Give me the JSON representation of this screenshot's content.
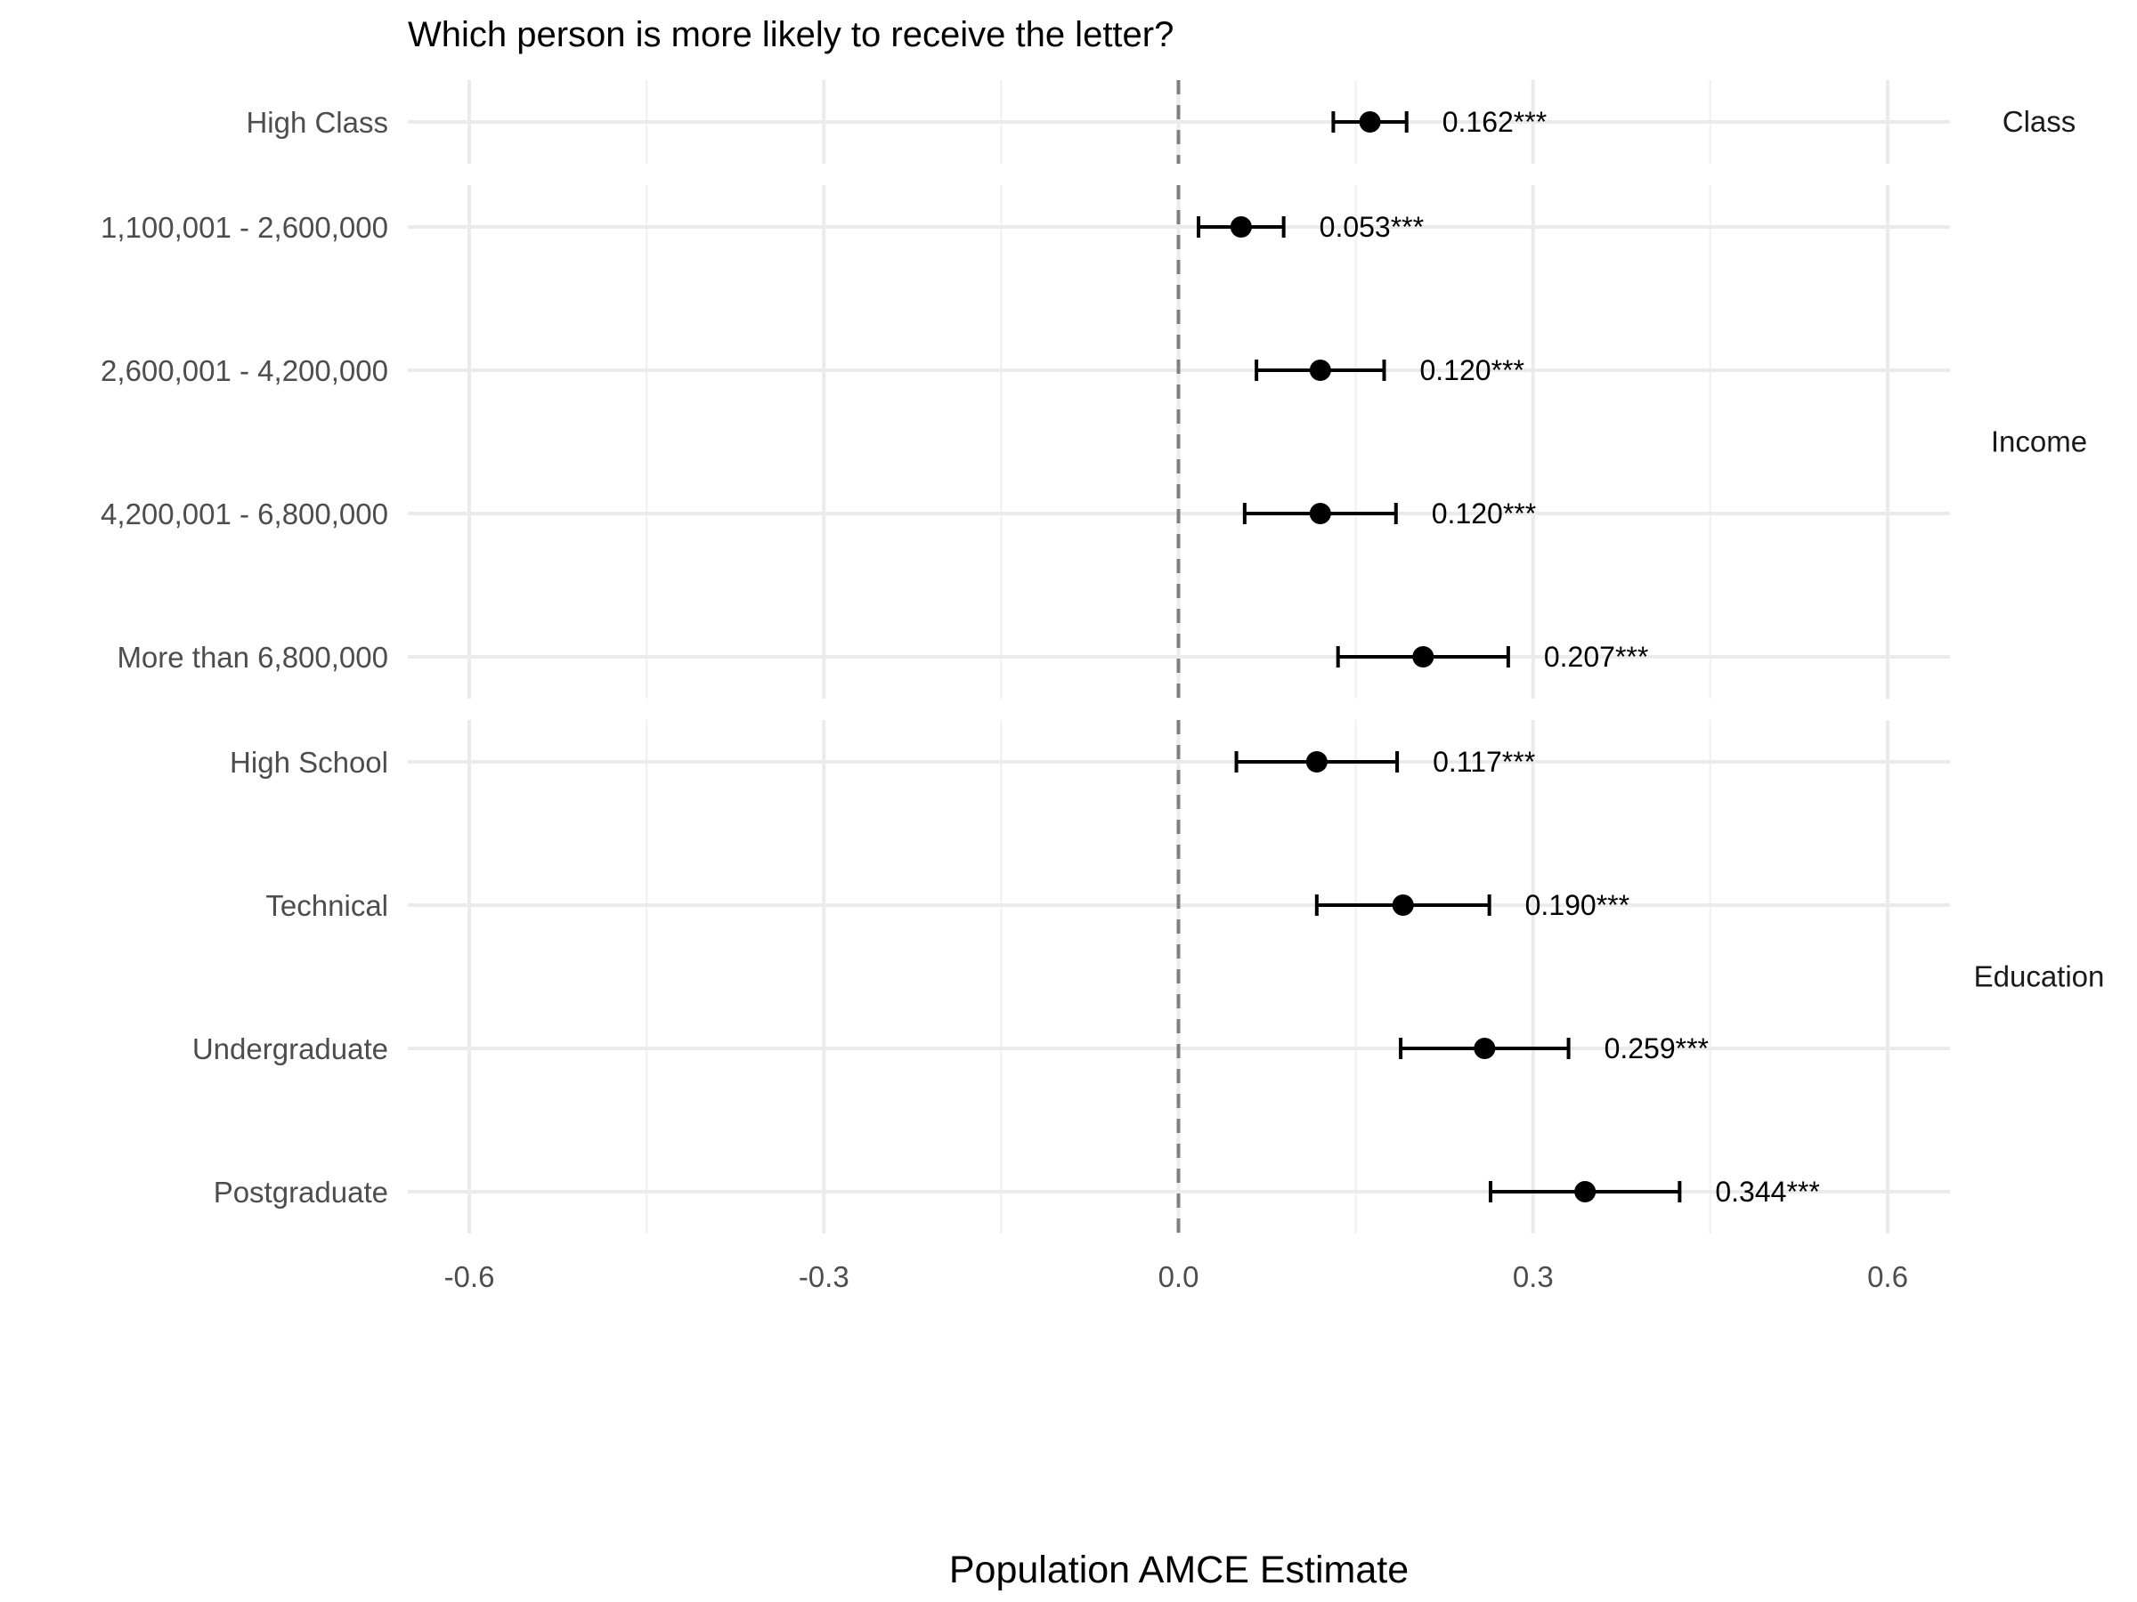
{
  "chart_data": {
    "type": "scatter",
    "title": "Which person is more likely to receive the letter?",
    "xlabel": "Population AMCE Estimate",
    "ylabel": "",
    "xlim": [
      -0.6,
      0.6
    ],
    "xticks": [
      "-0.6",
      "-0.3",
      "0.0",
      "0.3",
      "0.6"
    ],
    "reference_line": 0.0,
    "grid": true,
    "panels": [
      {
        "name": "Class",
        "rows": [
          {
            "label": "High Class",
            "estimate": 0.162,
            "lower": 0.131,
            "upper": 0.193,
            "text": "0.162***"
          }
        ]
      },
      {
        "name": "Income",
        "rows": [
          {
            "label": "1,100,001 - 2,600,000",
            "estimate": 0.053,
            "lower": 0.017,
            "upper": 0.089,
            "text": "0.053***"
          },
          {
            "label": "2,600,001 - 4,200,000",
            "estimate": 0.12,
            "lower": 0.066,
            "upper": 0.174,
            "text": "0.120***"
          },
          {
            "label": "4,200,001 - 6,800,000",
            "estimate": 0.12,
            "lower": 0.056,
            "upper": 0.184,
            "text": "0.120***"
          },
          {
            "label": "More than 6,800,000",
            "estimate": 0.207,
            "lower": 0.135,
            "upper": 0.279,
            "text": "0.207***"
          }
        ]
      },
      {
        "name": "Education",
        "rows": [
          {
            "label": "High School",
            "estimate": 0.117,
            "lower": 0.049,
            "upper": 0.185,
            "text": "0.117***"
          },
          {
            "label": "Technical",
            "estimate": 0.19,
            "lower": 0.117,
            "upper": 0.263,
            "text": "0.190***"
          },
          {
            "label": "Undergraduate",
            "estimate": 0.259,
            "lower": 0.188,
            "upper": 0.33,
            "text": "0.259***"
          },
          {
            "label": "Postgraduate",
            "estimate": 0.344,
            "lower": 0.264,
            "upper": 0.424,
            "text": "0.344***"
          }
        ]
      }
    ],
    "point_color": "#000000",
    "reference_line_color": "#808080"
  }
}
